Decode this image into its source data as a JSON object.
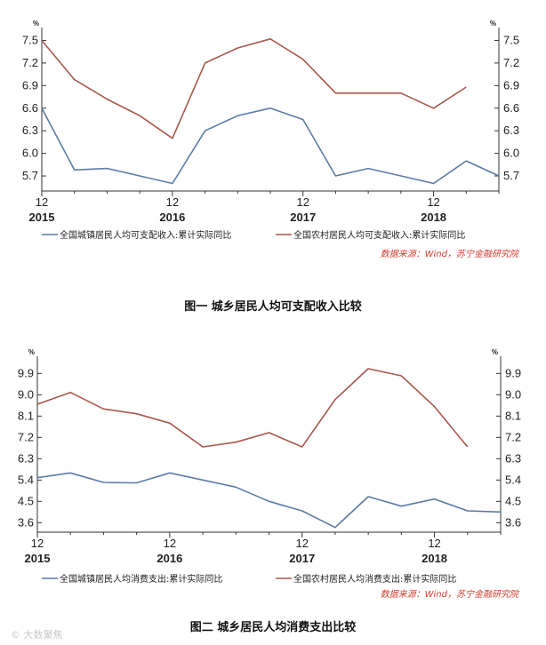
{
  "chart_data": [
    {
      "type": "line",
      "title": "",
      "caption": "图一  城乡居民人均可支配收入比较",
      "unit": "%",
      "x_tick_labels": [
        "12",
        "12",
        "12",
        "12"
      ],
      "x_year_labels": [
        "2015",
        "2016",
        "2017",
        "2018"
      ],
      "y_ticks": [
        "5.7",
        "6.0",
        "6.3",
        "6.6",
        "6.9",
        "7.2",
        "7.5"
      ],
      "ylim": [
        5.5,
        7.6
      ],
      "x_count": 15,
      "series": [
        {
          "name": "全国城镇居民人均可支配收入:累计实际同比",
          "color": "#5b7ba6",
          "values": [
            6.6,
            5.78,
            5.8,
            5.7,
            5.6,
            6.3,
            6.5,
            6.6,
            6.45,
            5.7,
            5.8,
            5.7,
            5.6,
            5.9,
            5.7
          ]
        },
        {
          "name": "全国农村居民人均可支配收入:累计实际同比",
          "color": "#a8574e",
          "values": [
            7.5,
            6.98,
            6.72,
            6.5,
            6.2,
            7.2,
            7.4,
            7.52,
            7.25,
            6.8,
            6.8,
            6.8,
            6.6,
            6.88,
            null
          ]
        }
      ],
      "source": "数据来源：Wind，苏宁金融研究院"
    },
    {
      "type": "line",
      "title": "",
      "caption": "图二  城乡居民人均消费支出比较",
      "unit": "%",
      "x_tick_labels": [
        "12",
        "12",
        "12",
        "12"
      ],
      "x_year_labels": [
        "2015",
        "2016",
        "2017",
        "2018"
      ],
      "y_ticks": [
        "3.6",
        "4.5",
        "5.4",
        "6.3",
        "7.2",
        "8.1",
        "9.0",
        "9.9"
      ],
      "ylim": [
        3.2,
        10.4
      ],
      "x_count": 15,
      "series": [
        {
          "name": "全国城镇居民人均消费支出:累计实际同比",
          "color": "#5b7ba6",
          "values": [
            5.5,
            5.7,
            5.3,
            5.28,
            5.7,
            5.4,
            5.1,
            4.5,
            4.1,
            3.4,
            4.7,
            4.3,
            4.6,
            4.1,
            4.05
          ]
        },
        {
          "name": "全国农村居民人均消费支出:累计实际同比",
          "color": "#a8574e",
          "values": [
            8.6,
            9.1,
            8.4,
            8.2,
            7.8,
            6.8,
            7.0,
            7.4,
            6.8,
            8.8,
            10.1,
            9.8,
            8.5,
            6.8,
            null
          ]
        }
      ],
      "source": "数据来源：Wind，苏宁金融研究院"
    }
  ],
  "watermark": "© 大数聚焦"
}
